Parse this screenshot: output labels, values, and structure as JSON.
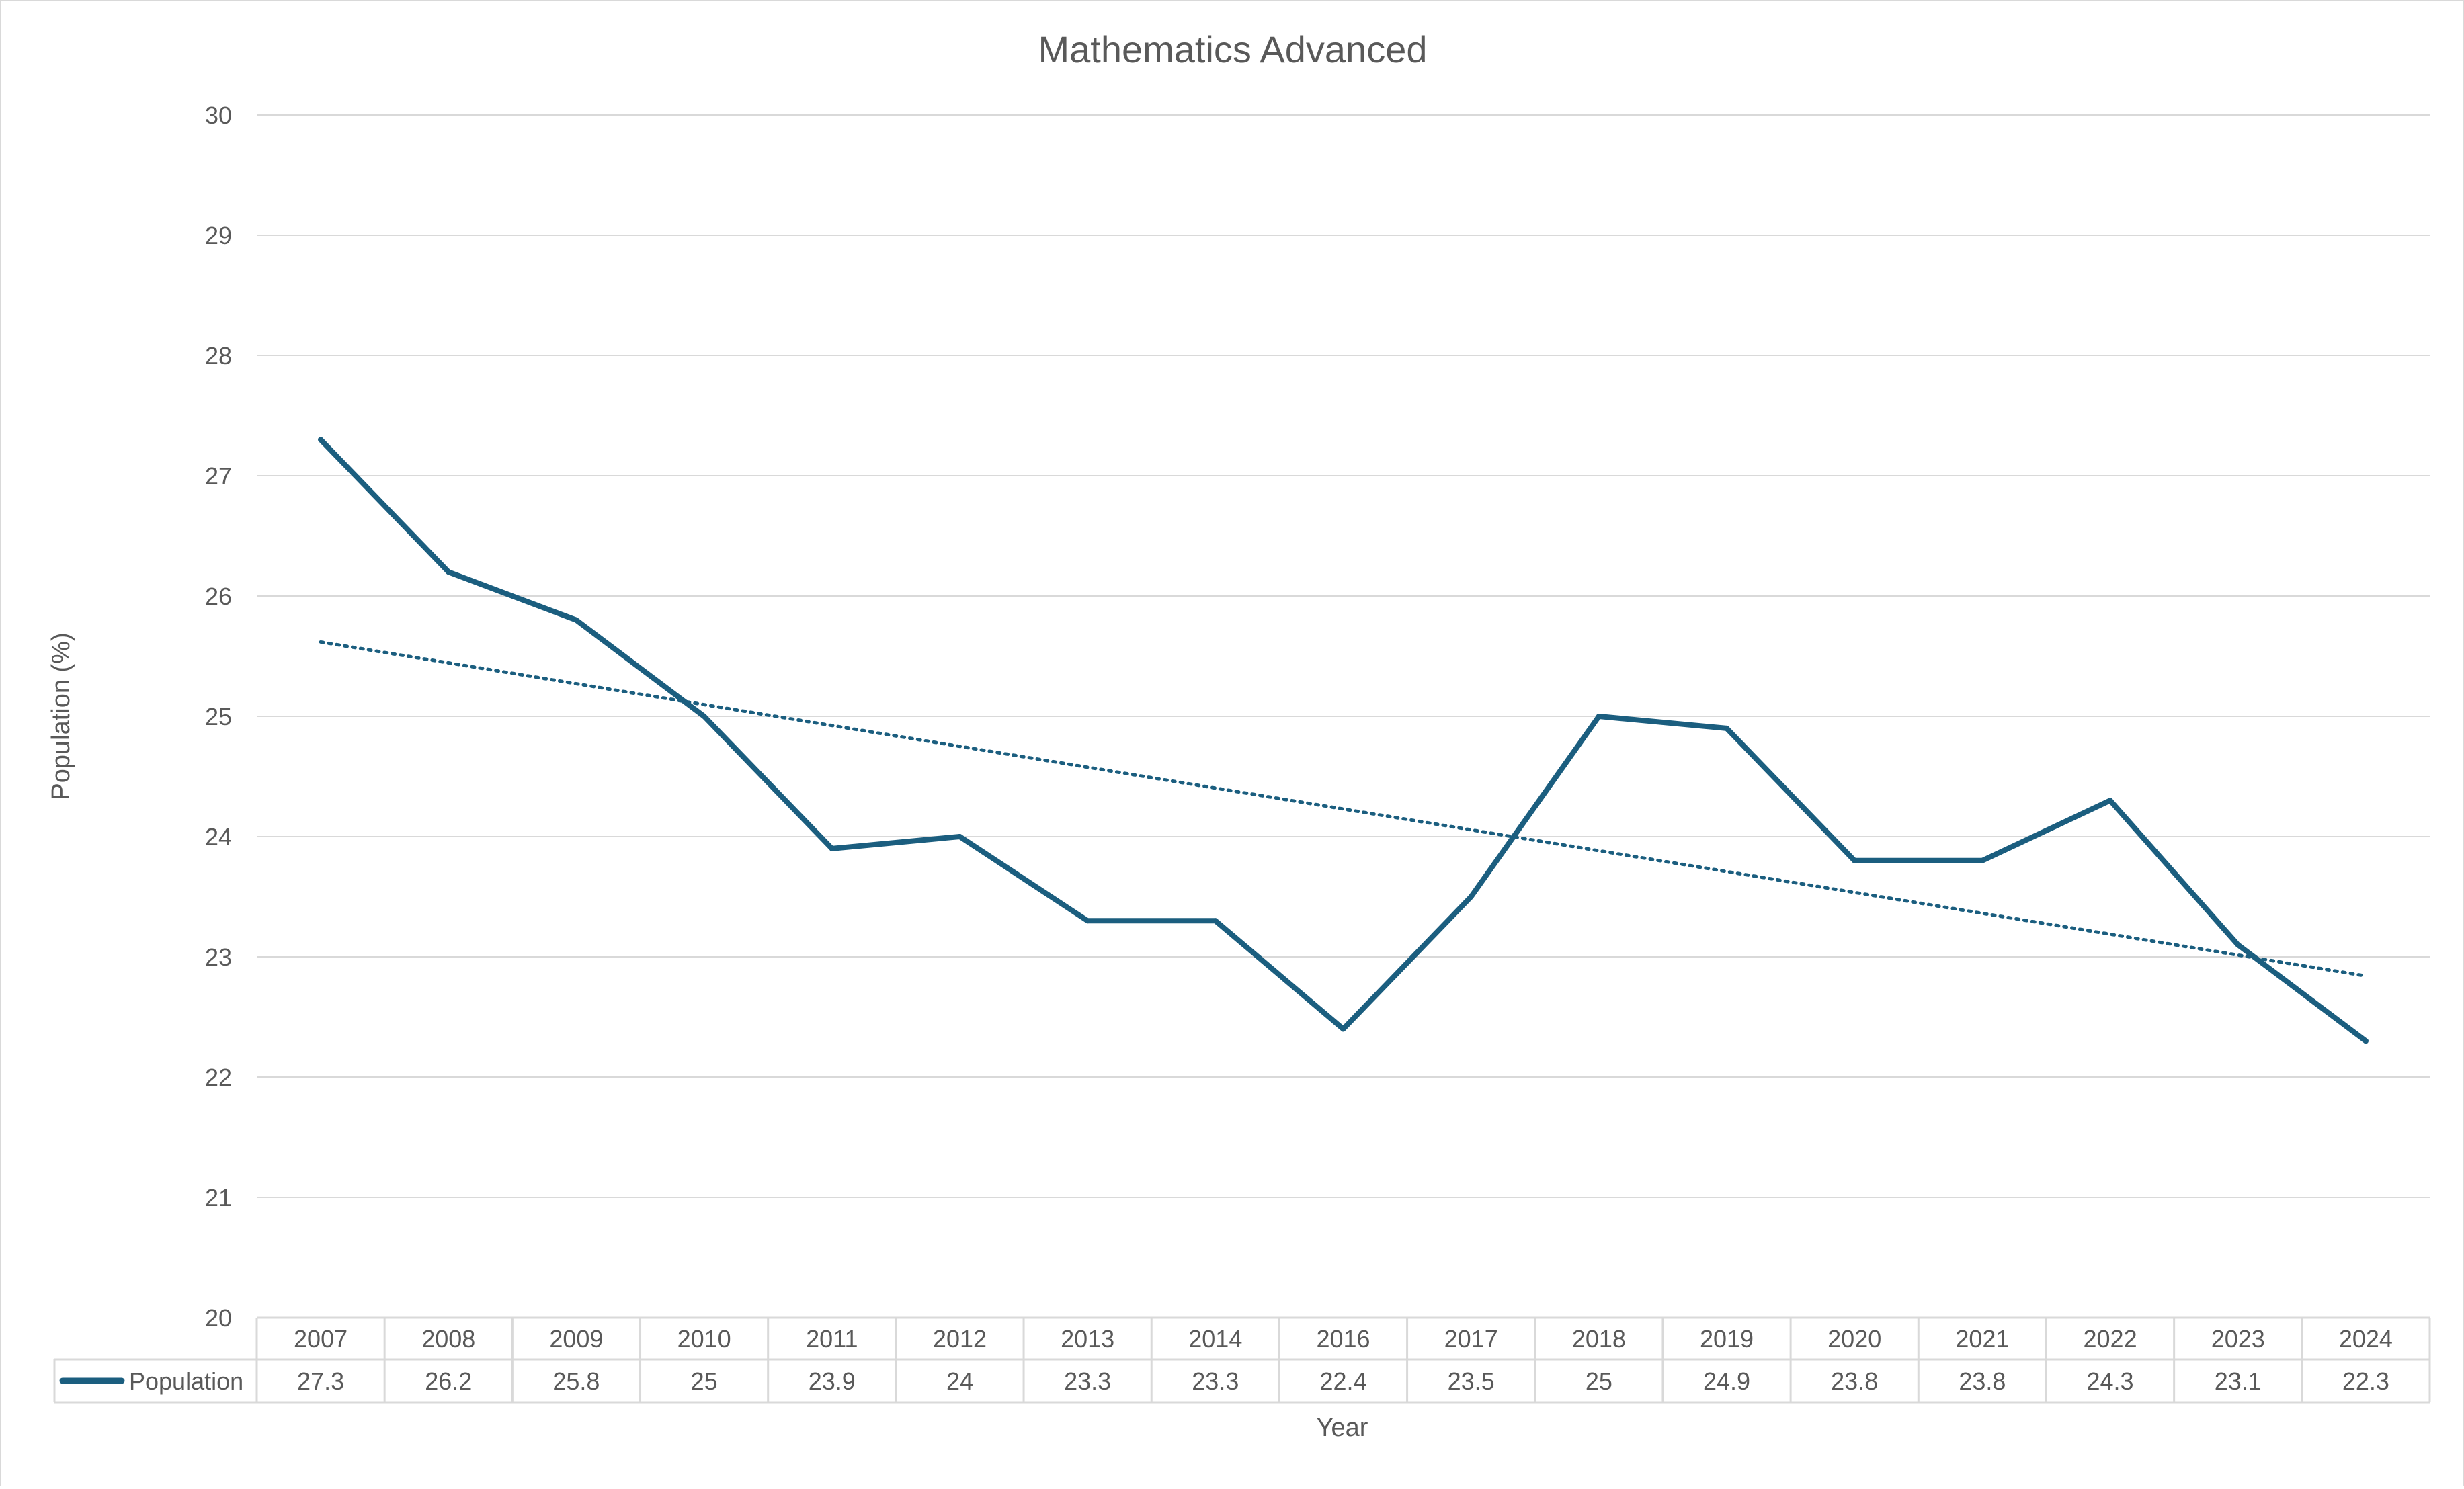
{
  "chart_data": {
    "type": "line",
    "title": "Mathematics Advanced",
    "xlabel": "Year",
    "ylabel": "Population (%)",
    "ylim": [
      20,
      30
    ],
    "yticks": [
      "20",
      "21",
      "22",
      "23",
      "24",
      "25",
      "26",
      "27",
      "28",
      "29",
      "30"
    ],
    "grid": true,
    "legend": "data table, left",
    "categories": [
      "2007",
      "2008",
      "2009",
      "2010",
      "2011",
      "2012",
      "2013",
      "2014",
      "2016",
      "2017",
      "2018",
      "2019",
      "2020",
      "2021",
      "2022",
      "2023",
      "2024"
    ],
    "series": [
      {
        "name": "Population",
        "values": [
          27.3,
          26.2,
          25.8,
          25,
          23.9,
          24,
          23.3,
          23.3,
          22.4,
          23.5,
          25,
          24.9,
          23.8,
          23.8,
          24.3,
          23.1,
          22.3
        ],
        "table_labels": [
          "27.3",
          "26.2",
          "25.8",
          "25",
          "23.9",
          "24",
          "23.3",
          "23.3",
          "22.4",
          "23.5",
          "25",
          "24.9",
          "23.8",
          "23.8",
          "24.3",
          "23.1",
          "22.3"
        ],
        "color": "#1B5E7F",
        "trendline": "linear, dotted"
      }
    ]
  }
}
